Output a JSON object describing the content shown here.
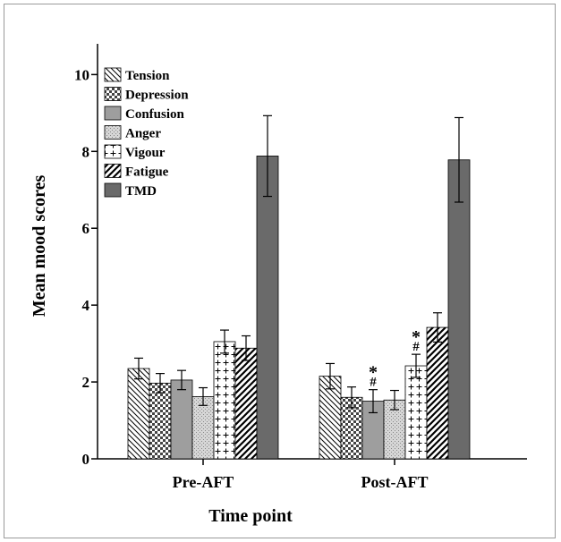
{
  "chart_data": {
    "type": "bar",
    "xlabel": "Time point",
    "ylabel": "Mean mood scores",
    "ylim": [
      0,
      10.8
    ],
    "yticks": [
      0,
      2,
      4,
      6,
      8,
      10
    ],
    "grid": false,
    "legend_position": "top-left",
    "categories": [
      "Pre-AFT",
      "Post-AFT"
    ],
    "series": [
      {
        "name": "Tension",
        "pattern": "diag-back",
        "values": [
          2.35,
          2.15
        ],
        "error": [
          0.27,
          0.33
        ]
      },
      {
        "name": "Depression",
        "pattern": "checker",
        "values": [
          1.97,
          1.6
        ],
        "error": [
          0.25,
          0.27
        ]
      },
      {
        "name": "Confusion",
        "pattern": "solid-gray",
        "values": [
          2.05,
          1.5
        ],
        "error": [
          0.25,
          0.3
        ]
      },
      {
        "name": "Anger",
        "pattern": "dots",
        "values": [
          1.62,
          1.53
        ],
        "error": [
          0.23,
          0.25
        ]
      },
      {
        "name": "Vigour",
        "pattern": "plus",
        "values": [
          3.05,
          2.42
        ],
        "error": [
          0.3,
          0.3
        ]
      },
      {
        "name": "Fatigue",
        "pattern": "diag-forward",
        "values": [
          2.88,
          3.42
        ],
        "error": [
          0.32,
          0.38
        ]
      },
      {
        "name": "TMD",
        "pattern": "solid-dark",
        "values": [
          7.88,
          7.78
        ],
        "error": [
          1.05,
          1.1
        ]
      }
    ],
    "annotations": [
      {
        "category": "Post-AFT",
        "series": "Confusion",
        "lines": [
          "*",
          "#"
        ]
      },
      {
        "category": "Post-AFT",
        "series": "Vigour",
        "lines": [
          "*",
          "#"
        ]
      }
    ]
  },
  "colors": {
    "solid_gray": "#9e9e9e",
    "solid_dark": "#6a6a6a",
    "stroke": "#000000"
  }
}
